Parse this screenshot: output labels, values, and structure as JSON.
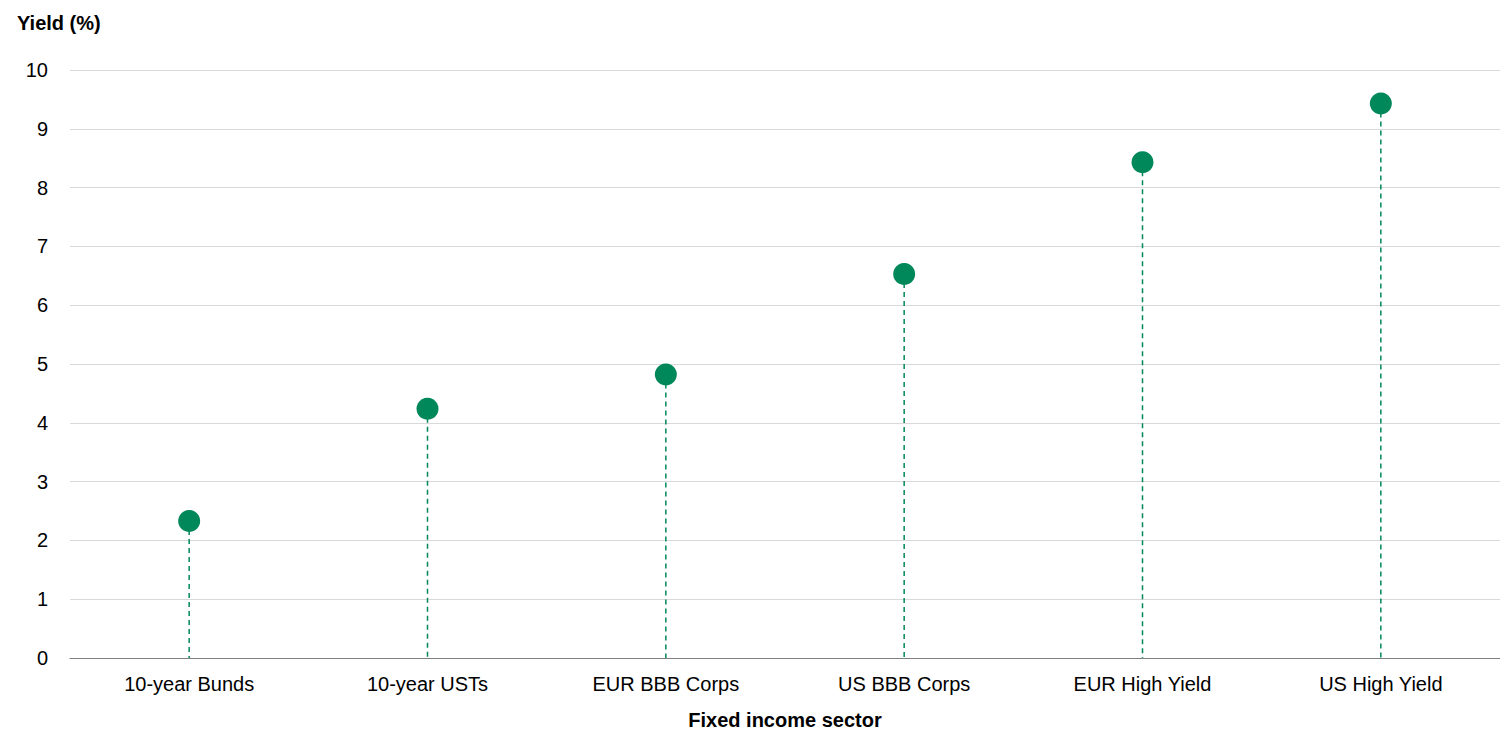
{
  "chart_data": {
    "type": "lollipop",
    "x_label": "Fixed income sector",
    "y_label": "Yield (%)",
    "categories": [
      "10-year Bunds",
      "10-year USTs",
      "EUR BBB Corps",
      "US BBB Corps",
      "EUR High Yield",
      "US High Yield"
    ],
    "values": [
      2.33,
      4.24,
      4.82,
      6.53,
      8.43,
      9.43
    ],
    "color": "#00875a",
    "marker": "circle",
    "line_style": "dashed",
    "ylim": [
      0,
      10
    ],
    "yticks": [
      0,
      1,
      2,
      3,
      4,
      5,
      6,
      7,
      8,
      9,
      10
    ],
    "grid": true
  }
}
